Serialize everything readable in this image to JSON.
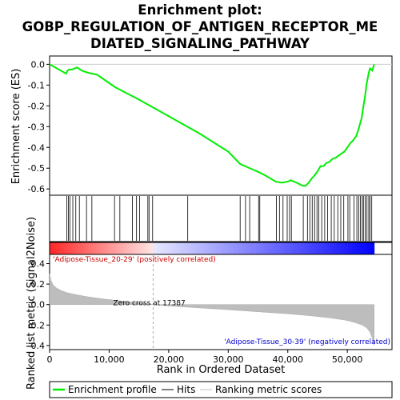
{
  "chart_data": {
    "type": "line",
    "title_lines": [
      "Enrichment plot:",
      "GOBP_REGULATION_OF_ANTIGEN_RECEPTOR_ME",
      "DIATED_SIGNALING_PATHWAY"
    ],
    "top_panel": {
      "ylabel": "Enrichment score (ES)",
      "ylim": [
        -0.63,
        0.04
      ],
      "yticks": [
        0.0,
        -0.1,
        -0.2,
        -0.3,
        -0.4,
        -0.5,
        -0.6
      ],
      "ytick_labels": [
        "0.0",
        "-0.1",
        "-0.2",
        "-0.3",
        "-0.4",
        "-0.5",
        "-0.6"
      ],
      "series": [
        {
          "name": "Enrichment profile",
          "color": "#00ee00",
          "x": [
            0,
            2800,
            3000,
            3300,
            3800,
            4200,
            4600,
            5400,
            6400,
            7200,
            8000,
            11000,
            15000,
            20000,
            25000,
            30000,
            32000,
            34000,
            35200,
            36200,
            38000,
            39000,
            40000,
            40500,
            41500,
            42500,
            43000,
            43500,
            44000,
            44500,
            45000,
            45500,
            46000,
            46500,
            47000,
            47500,
            48000,
            48500,
            49000,
            49500,
            50000,
            50500,
            51000,
            51500,
            51800,
            52100,
            52400,
            52600,
            52800,
            53000,
            53200,
            53400,
            53600,
            53800,
            54200,
            54500
          ],
          "y": [
            0.0,
            -0.045,
            -0.03,
            -0.025,
            -0.025,
            -0.02,
            -0.015,
            -0.03,
            -0.04,
            -0.045,
            -0.05,
            -0.11,
            -0.17,
            -0.25,
            -0.33,
            -0.42,
            -0.48,
            -0.505,
            -0.52,
            -0.535,
            -0.565,
            -0.57,
            -0.565,
            -0.558,
            -0.57,
            -0.585,
            -0.585,
            -0.57,
            -0.55,
            -0.535,
            -0.515,
            -0.49,
            -0.49,
            -0.475,
            -0.47,
            -0.455,
            -0.45,
            -0.44,
            -0.43,
            -0.42,
            -0.4,
            -0.38,
            -0.365,
            -0.345,
            -0.32,
            -0.29,
            -0.26,
            -0.22,
            -0.185,
            -0.15,
            -0.1,
            -0.07,
            -0.04,
            -0.02,
            -0.03,
            0.0
          ]
        }
      ],
      "hits": [
        2900,
        3150,
        3400,
        3900,
        4400,
        5000,
        6200,
        7100,
        10900,
        11800,
        13900,
        14600,
        15100,
        16500,
        16700,
        17300,
        23200,
        32000,
        32900,
        33600,
        35100,
        35300,
        38100,
        38600,
        39200,
        39900,
        40300,
        40600,
        42600,
        43300,
        43700,
        44100,
        44500,
        44900,
        45200,
        45700,
        46200,
        46700,
        47300,
        47800,
        48400,
        48900,
        49400,
        50100,
        50400,
        51100,
        51600,
        51900,
        52200,
        52500,
        52700,
        53000,
        53300,
        53600,
        53800,
        54100
      ]
    },
    "bottom_panel": {
      "ylabel": "Ranked list metric (Signal2Noise)",
      "ylim": [
        -0.44,
        0.49
      ],
      "yticks": [
        0.4,
        0.2,
        0.0,
        -0.2,
        -0.4
      ],
      "ytick_labels": [
        "0.4",
        "0.2",
        "0.0",
        "-0.2",
        "-0.4"
      ],
      "metric_profile": {
        "x": [
          0,
          200,
          600,
          1200,
          2000,
          3000,
          4500,
          6500,
          9000,
          12000,
          15000,
          17387,
          20000,
          25000,
          30000,
          35000,
          40000,
          44000,
          47000,
          49500,
          51000,
          52500,
          53300,
          53800,
          54200,
          54500
        ],
        "y": [
          0.3,
          0.24,
          0.19,
          0.16,
          0.135,
          0.115,
          0.095,
          0.075,
          0.055,
          0.035,
          0.017,
          0.0,
          -0.013,
          -0.032,
          -0.05,
          -0.07,
          -0.09,
          -0.11,
          -0.13,
          -0.15,
          -0.17,
          -0.2,
          -0.23,
          -0.27,
          -0.33,
          -0.4
        ]
      },
      "zero_cross_label": "Zero cross at 17387",
      "zero_cross_x": 17387,
      "positive_label": "'Adipose-Tissue_20-29' (positively correlated)",
      "negative_label": "'Adipose-Tissue_30-39' (negatively correlated)"
    },
    "xlabel": "Rank in Ordered Dataset",
    "xlim": [
      0,
      57500
    ],
    "xticks": [
      0,
      10000,
      20000,
      30000,
      40000,
      50000
    ],
    "xtick_labels": [
      "0",
      "10,000",
      "20,000",
      "30,000",
      "40,000",
      "50,000"
    ],
    "legend": [
      {
        "label": "Enrichment profile",
        "color": "#00ee00",
        "style": "thick-line"
      },
      {
        "label": "Hits",
        "color": "#000000",
        "style": "line"
      },
      {
        "label": "Ranking metric scores",
        "color": "#c0c0c0",
        "style": "line"
      }
    ],
    "legend_position": "bottom"
  }
}
